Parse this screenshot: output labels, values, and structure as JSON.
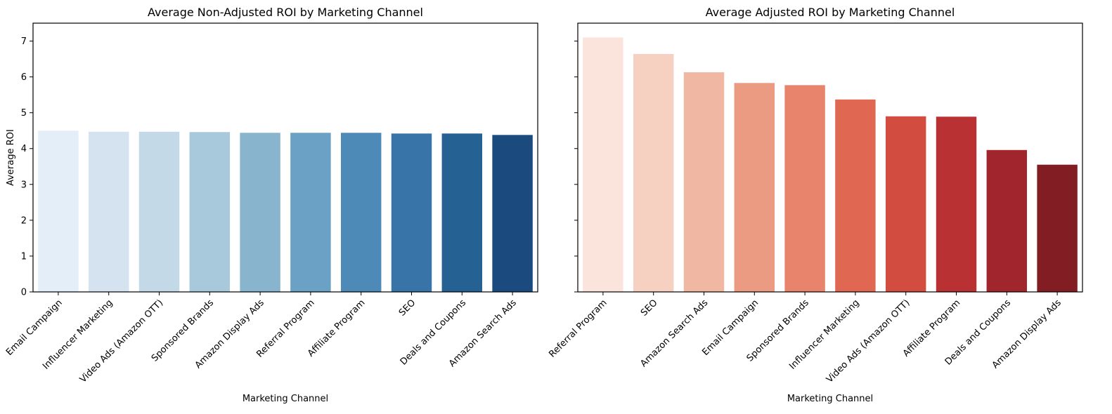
{
  "chart_data": [
    {
      "type": "bar",
      "title": "Average Non-Adjusted ROI by Marketing Channel",
      "xlabel": "Marketing Channel",
      "ylabel": "Average ROI",
      "ylim": [
        0,
        7.5
      ],
      "yticks": [
        0,
        1,
        2,
        3,
        4,
        5,
        6,
        7
      ],
      "grid": false,
      "categories": [
        "Email Campaign",
        "Influencer Marketing",
        "Video Ads (Amazon OTT)",
        "Sponsored Brands",
        "Amazon Display Ads",
        "Referral Program",
        "Affiliate Program",
        "SEO",
        "Deals and Coupons",
        "Amazon Search Ads"
      ],
      "values": [
        4.5,
        4.47,
        4.47,
        4.46,
        4.44,
        4.44,
        4.44,
        4.42,
        4.42,
        4.38
      ],
      "colors": [
        "#e4eef8",
        "#d5e3f0",
        "#c3d9e8",
        "#a8c8dc",
        "#88b4cd",
        "#6aa1c4",
        "#4e8ab8",
        "#3874a8",
        "#266194",
        "#1b4a7e"
      ]
    },
    {
      "type": "bar",
      "title": "Average Adjusted ROI by Marketing Channel",
      "xlabel": "Marketing Channel",
      "ylabel": "",
      "ylim": [
        0,
        7.5
      ],
      "yticks": [
        0,
        1,
        2,
        3,
        4,
        5,
        6,
        7
      ],
      "grid": false,
      "shared_y": true,
      "categories": [
        "Referral Program",
        "SEO",
        "Amazon Search Ads",
        "Email Campaign",
        "Sponsored Brands",
        "Influencer Marketing",
        "Video Ads (Amazon OTT)",
        "Affiliate Program",
        "Deals and Coupons",
        "Amazon Display Ads"
      ],
      "values": [
        7.1,
        6.64,
        6.13,
        5.83,
        5.77,
        5.37,
        4.9,
        4.89,
        3.96,
        3.55
      ],
      "colors": [
        "#fbe4dc",
        "#f6d1c2",
        "#f0b8a2",
        "#ea9b82",
        "#e7846b",
        "#e06853",
        "#d24c40",
        "#b93133",
        "#a0252c",
        "#821d24"
      ]
    }
  ]
}
